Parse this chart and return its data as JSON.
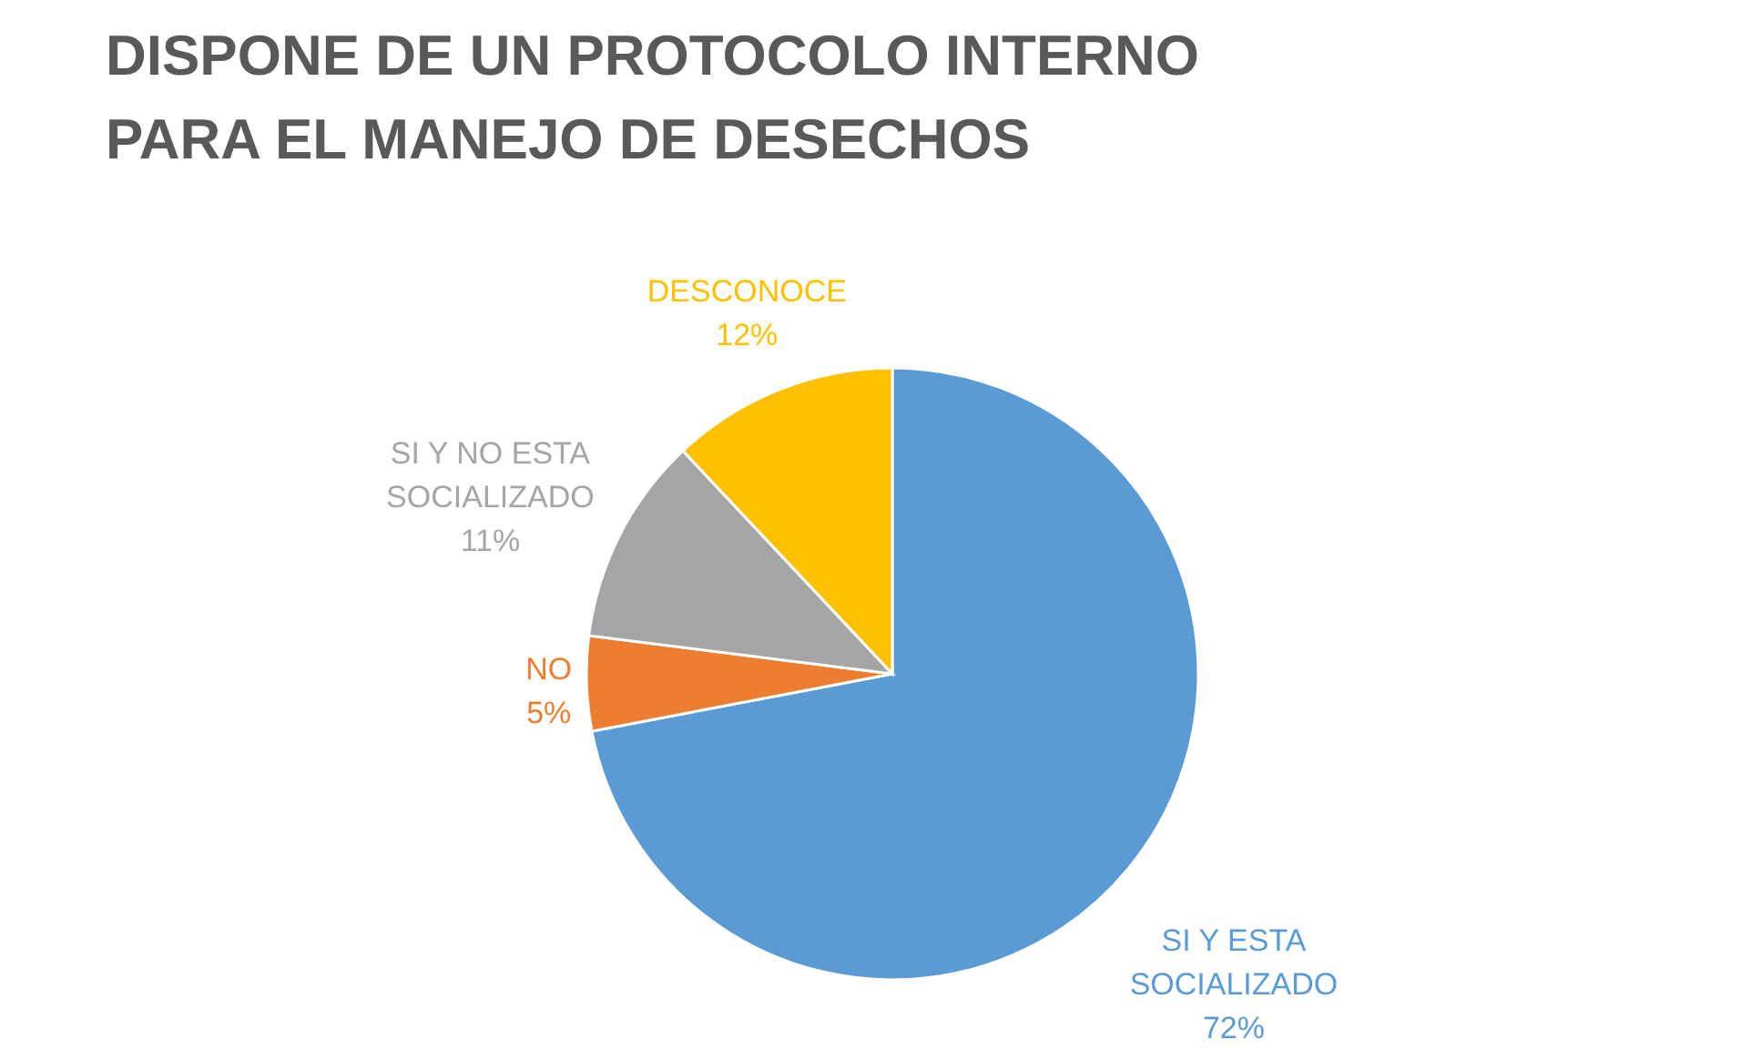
{
  "chart_data": {
    "type": "pie",
    "title": "DISPONE DE UN PROTOCOLO INTERNO PARA EL MANEJO DE DESECHOS",
    "categories": [
      "SI Y ESTA SOCIALIZADO",
      "NO",
      "SI Y NO ESTA SOCIALIZADO",
      "DESCONOCE"
    ],
    "values": [
      72,
      5,
      11,
      12
    ],
    "colors": [
      "#5b9bd5",
      "#ed7d31",
      "#a5a5a5",
      "#ffc000"
    ],
    "value_labels": [
      "72%",
      "5%",
      "11%",
      "12%"
    ]
  }
}
